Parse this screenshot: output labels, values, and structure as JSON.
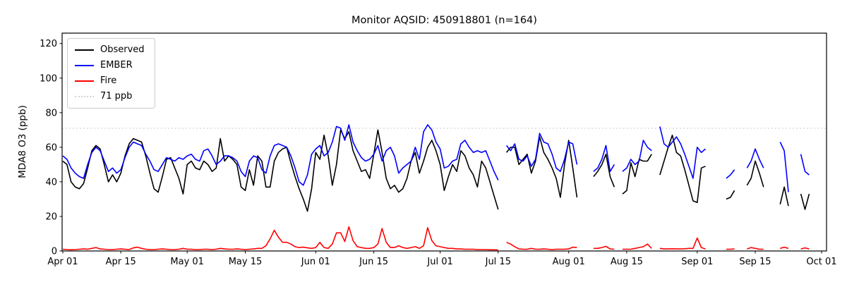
{
  "figure": {
    "background": "#ffffff"
  },
  "chart_data": {
    "type": "line",
    "title": "Monitor AQSID: 450918801 (n=164)",
    "xlabel": "",
    "ylabel": "MDA8 O3 (ppb)",
    "grid": false,
    "legend_position": "upper left",
    "ylim": [
      0,
      126
    ],
    "yticks": [
      0,
      20,
      40,
      60,
      80,
      100,
      120
    ],
    "x_axis": {
      "total_days": 183,
      "ticks": [
        {
          "label": "Apr 01",
          "day": 0
        },
        {
          "label": "Apr 15",
          "day": 14
        },
        {
          "label": "May 01",
          "day": 30
        },
        {
          "label": "May 15",
          "day": 44
        },
        {
          "label": "Jun 01",
          "day": 61
        },
        {
          "label": "Jun 15",
          "day": 75
        },
        {
          "label": "Jul 01",
          "day": 91
        },
        {
          "label": "Jul 15",
          "day": 105
        },
        {
          "label": "Aug 01",
          "day": 122
        },
        {
          "label": "Aug 15",
          "day": 136
        },
        {
          "label": "Sep 01",
          "day": 153
        },
        {
          "label": "Sep 15",
          "day": 167
        },
        {
          "label": "Oct 01",
          "day": 183
        }
      ]
    },
    "threshold": {
      "value": 71,
      "label": "71 ppb",
      "color": "#d3d3d3",
      "style": "dotted"
    },
    "series": [
      {
        "name": "Observed",
        "color": "#000000",
        "style": "solid",
        "values": [
          52,
          50,
          40,
          37,
          36,
          39,
          48,
          58,
          61,
          59,
          50,
          40,
          44,
          40,
          45,
          55,
          62,
          65,
          64,
          63,
          55,
          45,
          36,
          34,
          43,
          53,
          54,
          48,
          42,
          33,
          50,
          52,
          48,
          47,
          52,
          50,
          46,
          48,
          65,
          52,
          55,
          53,
          50,
          37,
          35,
          47,
          38,
          55,
          52,
          37,
          37,
          52,
          57,
          59,
          60,
          51,
          43,
          36,
          30,
          23,
          36,
          57,
          53,
          67,
          55,
          38,
          50,
          70,
          65,
          69,
          58,
          52,
          46,
          47,
          42,
          56,
          70,
          57,
          42,
          36,
          38,
          34,
          36,
          42,
          52,
          57,
          45,
          52,
          60,
          64,
          58,
          50,
          35,
          43,
          50,
          46,
          58,
          55,
          48,
          44,
          37,
          52,
          48,
          40,
          32,
          24,
          null,
          57,
          60,
          60,
          50,
          53,
          56,
          45,
          52,
          66,
          57,
          53,
          48,
          42,
          31,
          50,
          64,
          48,
          31,
          null,
          null,
          null,
          43,
          46,
          50,
          56,
          43,
          37,
          null,
          33,
          35,
          51,
          43,
          53,
          52,
          52,
          56,
          null,
          44,
          52,
          60,
          67,
          57,
          55,
          47,
          38,
          29,
          28,
          48,
          49,
          null,
          null,
          null,
          null,
          30,
          31,
          35,
          null,
          null,
          38,
          42,
          52,
          45,
          37,
          null,
          null,
          null,
          27,
          37,
          26,
          null,
          null,
          33,
          24,
          33,
          null,
          null
        ]
      },
      {
        "name": "EMBER",
        "color": "#0000ff",
        "style": "solid",
        "values": [
          55,
          53,
          48,
          45,
          43,
          42,
          50,
          57,
          60,
          58,
          52,
          46,
          48,
          45,
          47,
          54,
          60,
          63,
          62,
          61,
          56,
          52,
          47,
          46,
          50,
          54,
          53,
          52,
          54,
          53,
          55,
          56,
          53,
          52,
          58,
          59,
          55,
          50,
          52,
          55,
          55,
          54,
          52,
          46,
          43,
          52,
          55,
          54,
          47,
          45,
          55,
          61,
          62,
          61,
          60,
          55,
          48,
          40,
          38,
          44,
          56,
          59,
          61,
          55,
          57,
          63,
          72,
          71,
          64,
          73,
          63,
          58,
          54,
          52,
          53,
          56,
          61,
          52,
          58,
          60,
          55,
          45,
          48,
          50,
          52,
          60,
          53,
          69,
          73,
          70,
          63,
          59,
          48,
          49,
          52,
          53,
          62,
          64,
          60,
          57,
          58,
          57,
          58,
          52,
          46,
          41,
          null,
          61,
          58,
          62,
          53,
          52,
          55,
          49,
          53,
          68,
          63,
          62,
          56,
          48,
          46,
          53,
          63,
          62,
          50,
          null,
          null,
          null,
          46,
          48,
          53,
          61,
          46,
          50,
          null,
          46,
          48,
          53,
          50,
          52,
          64,
          60,
          58,
          null,
          72,
          62,
          60,
          63,
          66,
          62,
          56,
          49,
          42,
          60,
          57,
          59,
          null,
          null,
          null,
          null,
          42,
          44,
          47,
          null,
          null,
          48,
          52,
          59,
          53,
          48,
          null,
          null,
          null,
          63,
          58,
          34,
          null,
          null,
          56,
          46,
          44,
          null,
          null
        ]
      },
      {
        "name": "Fire",
        "color": "#ff0000",
        "style": "solid",
        "values": [
          1,
          0.8,
          0.7,
          0.8,
          1,
          1.2,
          1,
          1.5,
          2,
          1.2,
          1,
          0.8,
          0.8,
          1,
          1.2,
          1,
          0.8,
          1.8,
          2.2,
          1.5,
          1,
          0.8,
          0.8,
          1,
          1.2,
          1,
          0.8,
          0.8,
          1,
          1.5,
          1,
          1,
          0.8,
          0.8,
          1,
          1,
          0.8,
          1,
          1.5,
          1.2,
          1,
          1,
          1.2,
          1,
          0.8,
          1,
          1.2,
          1.5,
          1.5,
          3,
          7,
          12,
          8,
          5,
          5,
          4,
          2.5,
          2,
          2.2,
          1.8,
          1.5,
          2,
          5,
          2,
          1.5,
          4,
          10.5,
          10.5,
          5.5,
          14,
          6,
          2.5,
          2,
          1.5,
          1.5,
          2,
          4,
          13,
          5,
          2,
          2,
          3,
          2,
          1.5,
          2,
          2.5,
          1.5,
          3,
          13.5,
          6,
          3,
          2.5,
          2,
          1.5,
          1.5,
          1.2,
          1.2,
          1,
          1,
          1,
          0.8,
          0.8,
          0.8,
          0.7,
          0.7,
          0.6,
          null,
          5,
          4,
          2.5,
          1.2,
          1,
          1,
          1.5,
          1,
          1,
          1.2,
          1,
          0.8,
          1,
          1,
          1,
          1.2,
          2.2,
          2,
          null,
          null,
          null,
          1.5,
          1.5,
          2,
          2.7,
          1.2,
          1,
          null,
          1,
          1,
          1,
          1.5,
          2,
          2.5,
          4,
          1.5,
          null,
          1.5,
          1.2,
          1.2,
          1.3,
          1.2,
          1.2,
          1.3,
          1.5,
          1.5,
          7.5,
          2,
          1.2,
          null,
          null,
          null,
          null,
          1,
          1,
          1.2,
          null,
          null,
          1.2,
          2,
          1.5,
          1,
          1,
          null,
          null,
          null,
          1.5,
          2.2,
          1.5,
          null,
          null,
          1.2,
          1.8,
          1.2,
          null,
          null
        ]
      }
    ]
  }
}
